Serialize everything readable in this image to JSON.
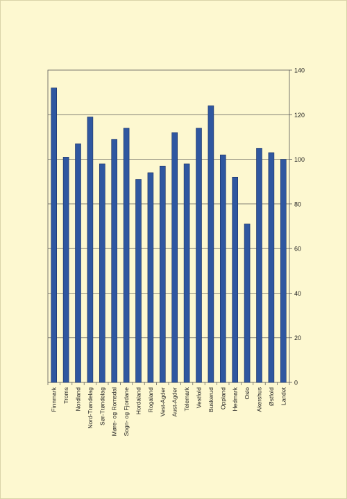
{
  "chart_data": {
    "type": "bar",
    "title": "",
    "xlabel": "",
    "ylabel": "",
    "categories": [
      "Finnmark",
      "Troms",
      "Nordland",
      "Nord-Trøndelag",
      "Sør-Trøndelag",
      "Møre- og Romsdal",
      "Sogn- og Fjordane",
      "Hordaland",
      "Rogaland",
      "Vest-Agder",
      "Aust-Agder",
      "Telemark",
      "Vestfold",
      "Buskerud",
      "Oppland",
      "Hedmark",
      "Oslo",
      "Akershus",
      "Østfold",
      "Landet"
    ],
    "values": [
      132,
      101,
      107,
      119,
      98,
      109,
      114,
      91,
      94,
      97,
      112,
      98,
      114,
      124,
      102,
      92,
      71,
      105,
      103,
      100
    ],
    "ylim": [
      0,
      140
    ],
    "yticks": [
      0,
      20,
      40,
      60,
      80,
      100,
      120,
      140
    ],
    "y_axis_position": "right",
    "grid": true,
    "legend": "none",
    "bar_color": "#2f57a0",
    "bar_edge_color": "#1a2f63"
  }
}
